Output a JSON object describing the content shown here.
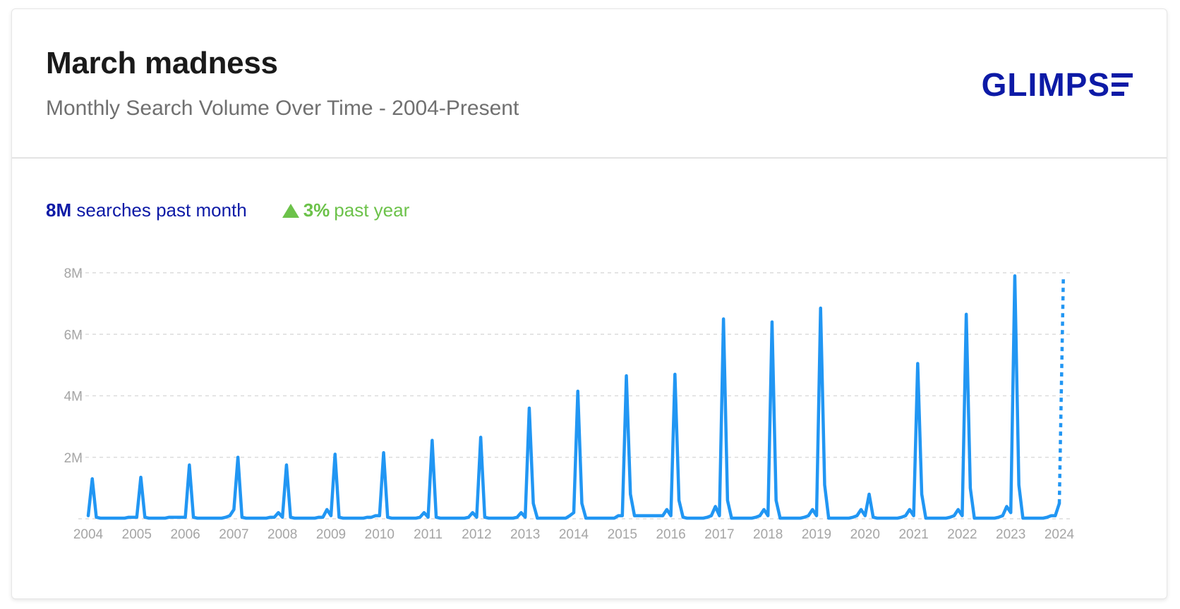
{
  "header": {
    "title": "March madness",
    "subtitle": "Monthly Search Volume Over Time - 2004-Present",
    "logo_text": "GLIMPS"
  },
  "stats": {
    "volume_value": "8M",
    "volume_text": "searches past month",
    "change_value": "3%",
    "change_text": "past year",
    "change_icon": "triangle-up-icon"
  },
  "colors": {
    "line": "#2196f3",
    "brand": "#0d1aa6",
    "positive": "#6cc24a",
    "grid": "#dcdcdc",
    "tick": "#a5a5a5"
  },
  "chart_data": {
    "type": "line",
    "x_unit": "month",
    "start": "2004-01",
    "y_unit": "searches",
    "ylim": [
      0,
      8000000
    ],
    "yticks": [
      2000000,
      4000000,
      6000000,
      8000000
    ],
    "ytick_labels": [
      "2M",
      "4M",
      "6M",
      "8M"
    ],
    "xticks": [
      "2004",
      "2005",
      "2006",
      "2007",
      "2008",
      "2009",
      "2010",
      "2011",
      "2012",
      "2013",
      "2014",
      "2015",
      "2016",
      "2017",
      "2018",
      "2019",
      "2020",
      "2021",
      "2022",
      "2023",
      "2024"
    ],
    "grid": true,
    "projected_last_point": true,
    "series": [
      {
        "values": [
          100000,
          1300000,
          50000,
          20000,
          20000,
          20000,
          20000,
          20000,
          20000,
          20000,
          50000,
          50000,
          50000,
          1350000,
          50000,
          20000,
          20000,
          20000,
          20000,
          20000,
          50000,
          50000,
          50000,
          50000,
          50000,
          1750000,
          50000,
          20000,
          20000,
          20000,
          20000,
          20000,
          20000,
          20000,
          50000,
          100000,
          300000,
          2000000,
          50000,
          20000,
          20000,
          20000,
          20000,
          20000,
          20000,
          50000,
          50000,
          200000,
          50000,
          1750000,
          50000,
          20000,
          20000,
          20000,
          20000,
          20000,
          20000,
          50000,
          50000,
          300000,
          100000,
          2100000,
          50000,
          20000,
          20000,
          20000,
          20000,
          20000,
          20000,
          50000,
          50000,
          100000,
          100000,
          2150000,
          50000,
          20000,
          20000,
          20000,
          20000,
          20000,
          20000,
          20000,
          50000,
          200000,
          50000,
          2550000,
          50000,
          20000,
          20000,
          20000,
          20000,
          20000,
          20000,
          20000,
          50000,
          200000,
          50000,
          2650000,
          50000,
          20000,
          20000,
          20000,
          20000,
          20000,
          20000,
          20000,
          50000,
          200000,
          50000,
          3600000,
          500000,
          20000,
          20000,
          20000,
          20000,
          20000,
          20000,
          20000,
          20000,
          100000,
          200000,
          4150000,
          500000,
          20000,
          20000,
          20000,
          20000,
          20000,
          20000,
          20000,
          20000,
          100000,
          100000,
          4650000,
          800000,
          100000,
          100000,
          100000,
          100000,
          100000,
          100000,
          100000,
          100000,
          300000,
          100000,
          4700000,
          600000,
          50000,
          20000,
          20000,
          20000,
          20000,
          20000,
          50000,
          100000,
          400000,
          100000,
          6500000,
          600000,
          20000,
          20000,
          20000,
          20000,
          20000,
          20000,
          50000,
          100000,
          300000,
          100000,
          6400000,
          600000,
          20000,
          20000,
          20000,
          20000,
          20000,
          20000,
          50000,
          100000,
          300000,
          100000,
          6850000,
          1100000,
          20000,
          20000,
          20000,
          20000,
          20000,
          20000,
          50000,
          100000,
          300000,
          100000,
          800000,
          50000,
          20000,
          20000,
          20000,
          20000,
          20000,
          20000,
          50000,
          100000,
          300000,
          100000,
          5050000,
          800000,
          20000,
          20000,
          20000,
          20000,
          20000,
          20000,
          50000,
          100000,
          300000,
          100000,
          6650000,
          1000000,
          20000,
          20000,
          20000,
          20000,
          20000,
          20000,
          50000,
          100000,
          400000,
          200000,
          7900000,
          1100000,
          20000,
          20000,
          20000,
          20000,
          20000,
          20000,
          50000,
          100000,
          100000,
          500000,
          7850000
        ]
      }
    ]
  }
}
